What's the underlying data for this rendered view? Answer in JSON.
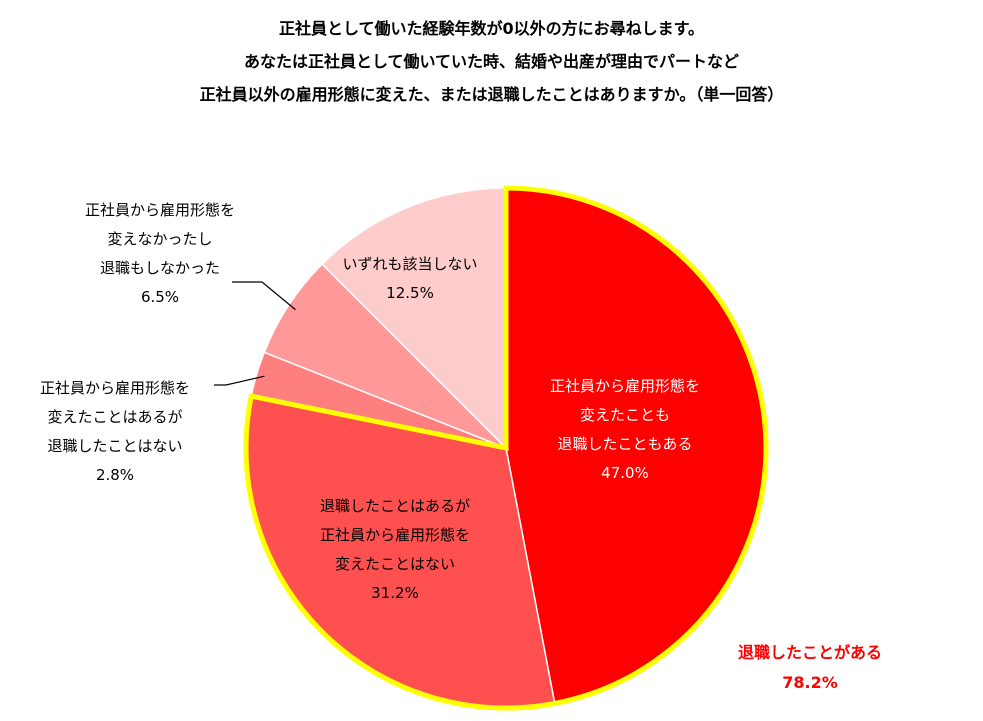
{
  "title_lines": [
    "正社員として働いた経験年数が0以外の方にお尋ねします。",
    "あなたは正社員として働いていた時、結婚や出産が理由でパートなど",
    "正社員以外の雇用形態に変えた、または退職したことはありますか。（単一回答）"
  ],
  "chart_data": {
    "type": "pie",
    "slices": [
      {
        "label_lines": [
          "正社員から雇用形態を",
          "変えたことも",
          "退職したこともある"
        ],
        "value": 47.0,
        "display": "47.0%",
        "color": "#ff0000"
      },
      {
        "label_lines": [
          "退職したことはあるが",
          "正社員から雇用形態を",
          "変えたことはない"
        ],
        "value": 31.2,
        "display": "31.2%",
        "color": "#ff5050"
      },
      {
        "label_lines": [
          "正社員から雇用形態を",
          "変えたことはあるが",
          "退職したことはない"
        ],
        "value": 2.8,
        "display": "2.8%",
        "color": "#ff7f7f"
      },
      {
        "label_lines": [
          "正社員から雇用形態を",
          "変えなかったし",
          "退職もしなかった"
        ],
        "value": 6.5,
        "display": "6.5%",
        "color": "#ff9999"
      },
      {
        "label_lines": [
          "いずれも該当しない"
        ],
        "value": 12.5,
        "display": "12.5%",
        "color": "#ffcccc"
      }
    ],
    "group_outline": {
      "color": "#ffff00"
    },
    "group_total": {
      "label": "退職したことがある",
      "value": "78.2%"
    }
  }
}
